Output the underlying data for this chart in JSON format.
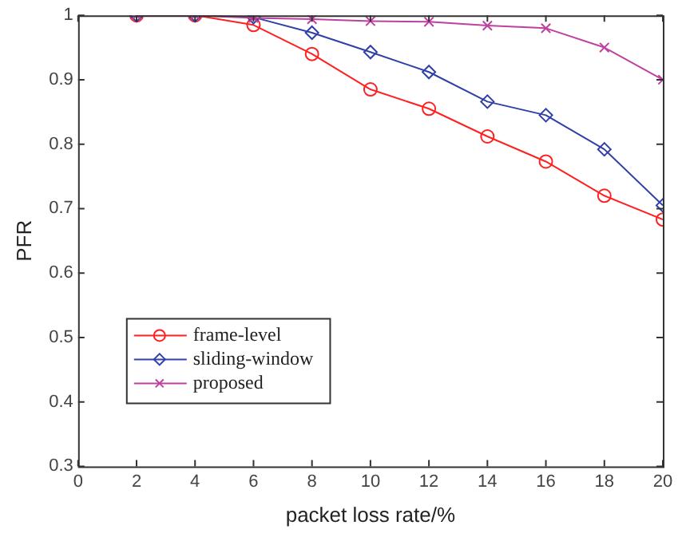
{
  "chart_data": {
    "type": "line",
    "xlabel": "packet loss rate/%",
    "ylabel": "PFR",
    "x": [
      2,
      4,
      6,
      8,
      10,
      12,
      14,
      16,
      18,
      20
    ],
    "series": [
      {
        "name": "frame-level",
        "color": "#ff2020",
        "marker": "circle",
        "values": [
          1,
          1,
          0.985,
          0.94,
          0.885,
          0.855,
          0.812,
          0.773,
          0.72,
          0.683
        ]
      },
      {
        "name": "sliding-window",
        "color": "#3040a8",
        "marker": "diamond",
        "values": [
          1,
          1,
          0.997,
          0.973,
          0.943,
          0.912,
          0.866,
          0.845,
          0.792,
          0.705
        ]
      },
      {
        "name": "proposed",
        "color": "#c040a0",
        "marker": "cross",
        "values": [
          1,
          1,
          0.996,
          0.994,
          0.991,
          0.99,
          0.984,
          0.98,
          0.95,
          0.9
        ]
      }
    ],
    "xlim": [
      0,
      20
    ],
    "xticks": [
      0,
      2,
      4,
      6,
      8,
      10,
      12,
      14,
      16,
      18,
      20
    ],
    "ylim": [
      0.3,
      1
    ],
    "yticks": [
      0.3,
      0.4,
      0.5,
      0.6,
      0.7,
      0.8,
      0.9,
      1
    ],
    "grid": false,
    "legend": "bottom left",
    "line_style": "solid"
  }
}
